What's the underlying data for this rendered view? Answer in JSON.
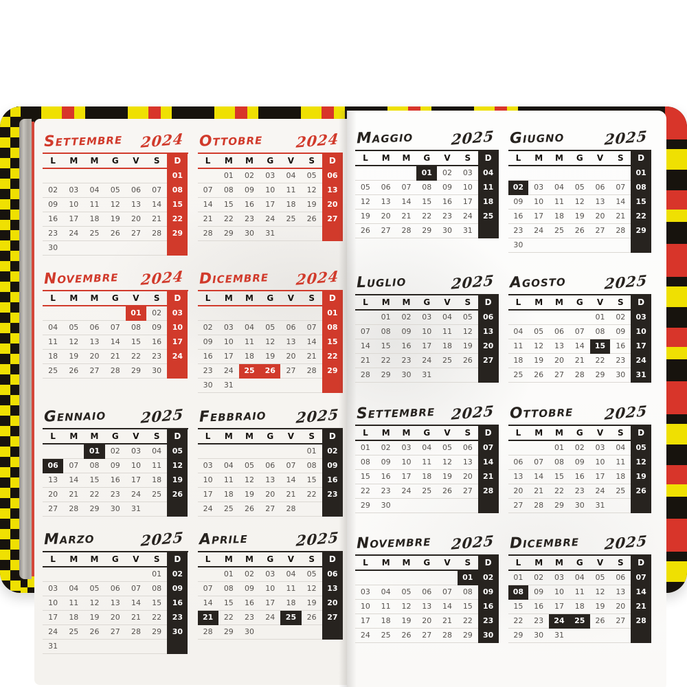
{
  "scene": {
    "description": "Open yearly-overview pages of a printed agenda planner (Italian), September 2024 - December 2025",
    "cover_colors": {
      "yellow": "#efe002",
      "black": "#17130d",
      "red": "#d8352a"
    }
  },
  "accents": {
    "red": "#d13a2b",
    "black": "#27231f"
  },
  "weekday_headers": [
    "L",
    "M",
    "M",
    "G",
    "V",
    "S",
    "D"
  ],
  "pages": [
    {
      "side": "left",
      "months": [
        {
          "name": "Settembre",
          "year": "2024",
          "accent": "red",
          "holidays": [],
          "weeks": [
            [
              "",
              "",
              "",
              "",
              "",
              "",
              "01"
            ],
            [
              "02",
              "03",
              "04",
              "05",
              "06",
              "07",
              "08"
            ],
            [
              "09",
              "10",
              "11",
              "12",
              "13",
              "14",
              "15"
            ],
            [
              "16",
              "17",
              "18",
              "19",
              "20",
              "21",
              "22"
            ],
            [
              "23",
              "24",
              "25",
              "26",
              "27",
              "28",
              "29"
            ],
            [
              "30",
              "",
              "",
              "",
              "",
              "",
              ""
            ]
          ]
        },
        {
          "name": "Ottobre",
          "year": "2024",
          "accent": "red",
          "holidays": [],
          "weeks": [
            [
              "",
              "01",
              "02",
              "03",
              "04",
              "05",
              "06"
            ],
            [
              "07",
              "08",
              "09",
              "10",
              "11",
              "12",
              "13"
            ],
            [
              "14",
              "15",
              "16",
              "17",
              "18",
              "19",
              "20"
            ],
            [
              "21",
              "22",
              "23",
              "24",
              "25",
              "26",
              "27"
            ],
            [
              "28",
              "29",
              "30",
              "31",
              "",
              "",
              ""
            ]
          ]
        },
        {
          "name": "Novembre",
          "year": "2024",
          "accent": "red",
          "holidays": [
            "01"
          ],
          "weeks": [
            [
              "",
              "",
              "",
              "",
              "01",
              "02",
              "03"
            ],
            [
              "04",
              "05",
              "06",
              "07",
              "08",
              "09",
              "10"
            ],
            [
              "11",
              "12",
              "13",
              "14",
              "15",
              "16",
              "17"
            ],
            [
              "18",
              "19",
              "20",
              "21",
              "22",
              "23",
              "24"
            ],
            [
              "25",
              "26",
              "27",
              "28",
              "29",
              "30",
              ""
            ]
          ]
        },
        {
          "name": "Dicembre",
          "year": "2024",
          "accent": "red",
          "holidays": [
            "25",
            "26"
          ],
          "weeks": [
            [
              "",
              "",
              "",
              "",
              "",
              "",
              "01"
            ],
            [
              "02",
              "03",
              "04",
              "05",
              "06",
              "07",
              "08"
            ],
            [
              "09",
              "10",
              "11",
              "12",
              "13",
              "14",
              "15"
            ],
            [
              "16",
              "17",
              "18",
              "19",
              "20",
              "21",
              "22"
            ],
            [
              "23",
              "24",
              "25",
              "26",
              "27",
              "28",
              "29"
            ],
            [
              "30",
              "31",
              "",
              "",
              "",
              "",
              ""
            ]
          ]
        },
        {
          "name": "Gennaio",
          "year": "2025",
          "accent": "black",
          "holidays": [
            "01",
            "06"
          ],
          "weeks": [
            [
              "",
              "",
              "01",
              "02",
              "03",
              "04",
              "05"
            ],
            [
              "06",
              "07",
              "08",
              "09",
              "10",
              "11",
              "12"
            ],
            [
              "13",
              "14",
              "15",
              "16",
              "17",
              "18",
              "19"
            ],
            [
              "20",
              "21",
              "22",
              "23",
              "24",
              "25",
              "26"
            ],
            [
              "27",
              "28",
              "29",
              "30",
              "31",
              "",
              ""
            ]
          ]
        },
        {
          "name": "Febbraio",
          "year": "2025",
          "accent": "black",
          "holidays": [],
          "weeks": [
            [
              "",
              "",
              "",
              "",
              "",
              "01",
              "02"
            ],
            [
              "03",
              "04",
              "05",
              "06",
              "07",
              "08",
              "09"
            ],
            [
              "10",
              "11",
              "12",
              "13",
              "14",
              "15",
              "16"
            ],
            [
              "17",
              "18",
              "19",
              "20",
              "21",
              "22",
              "23"
            ],
            [
              "24",
              "25",
              "26",
              "27",
              "28",
              "",
              ""
            ]
          ]
        },
        {
          "name": "Marzo",
          "year": "2025",
          "accent": "black",
          "holidays": [],
          "weeks": [
            [
              "",
              "",
              "",
              "",
              "",
              "01",
              "02"
            ],
            [
              "03",
              "04",
              "05",
              "06",
              "07",
              "08",
              "09"
            ],
            [
              "10",
              "11",
              "12",
              "13",
              "14",
              "15",
              "16"
            ],
            [
              "17",
              "18",
              "19",
              "20",
              "21",
              "22",
              "23"
            ],
            [
              "24",
              "25",
              "26",
              "27",
              "28",
              "29",
              "30"
            ],
            [
              "31",
              "",
              "",
              "",
              "",
              "",
              ""
            ]
          ]
        },
        {
          "name": "Aprile",
          "year": "2025",
          "accent": "black",
          "holidays": [
            "21",
            "25"
          ],
          "weeks": [
            [
              "",
              "01",
              "02",
              "03",
              "04",
              "05",
              "06"
            ],
            [
              "07",
              "08",
              "09",
              "10",
              "11",
              "12",
              "13"
            ],
            [
              "14",
              "15",
              "16",
              "17",
              "18",
              "19",
              "20"
            ],
            [
              "21",
              "22",
              "23",
              "24",
              "25",
              "26",
              "27"
            ],
            [
              "28",
              "29",
              "30",
              "",
              "",
              "",
              ""
            ]
          ]
        }
      ]
    },
    {
      "side": "right",
      "months": [
        {
          "name": "Maggio",
          "year": "2025",
          "accent": "black",
          "holidays": [
            "01"
          ],
          "weeks": [
            [
              "",
              "",
              "",
              "01",
              "02",
              "03",
              "04"
            ],
            [
              "05",
              "06",
              "07",
              "08",
              "09",
              "10",
              "11"
            ],
            [
              "12",
              "13",
              "14",
              "15",
              "16",
              "17",
              "18"
            ],
            [
              "19",
              "20",
              "21",
              "22",
              "23",
              "24",
              "25"
            ],
            [
              "26",
              "27",
              "28",
              "29",
              "30",
              "31",
              ""
            ]
          ]
        },
        {
          "name": "Giugno",
          "year": "2025",
          "accent": "black",
          "holidays": [
            "02"
          ],
          "weeks": [
            [
              "",
              "",
              "",
              "",
              "",
              "",
              "01"
            ],
            [
              "02",
              "03",
              "04",
              "05",
              "06",
              "07",
              "08"
            ],
            [
              "09",
              "10",
              "11",
              "12",
              "13",
              "14",
              "15"
            ],
            [
              "16",
              "17",
              "18",
              "19",
              "20",
              "21",
              "22"
            ],
            [
              "23",
              "24",
              "25",
              "26",
              "27",
              "28",
              "29"
            ],
            [
              "30",
              "",
              "",
              "",
              "",
              "",
              ""
            ]
          ]
        },
        {
          "name": "Luglio",
          "year": "2025",
          "accent": "black",
          "holidays": [],
          "weeks": [
            [
              "",
              "01",
              "02",
              "03",
              "04",
              "05",
              "06"
            ],
            [
              "07",
              "08",
              "09",
              "10",
              "11",
              "12",
              "13"
            ],
            [
              "14",
              "15",
              "16",
              "17",
              "18",
              "19",
              "20"
            ],
            [
              "21",
              "22",
              "23",
              "24",
              "25",
              "26",
              "27"
            ],
            [
              "28",
              "29",
              "30",
              "31",
              "",
              "",
              ""
            ]
          ]
        },
        {
          "name": "Agosto",
          "year": "2025",
          "accent": "black",
          "holidays": [
            "15"
          ],
          "weeks": [
            [
              "",
              "",
              "",
              "",
              "01",
              "02",
              "03"
            ],
            [
              "04",
              "05",
              "06",
              "07",
              "08",
              "09",
              "10"
            ],
            [
              "11",
              "12",
              "13",
              "14",
              "15",
              "16",
              "17"
            ],
            [
              "18",
              "19",
              "20",
              "21",
              "22",
              "23",
              "24"
            ],
            [
              "25",
              "26",
              "27",
              "28",
              "29",
              "30",
              "31"
            ]
          ]
        },
        {
          "name": "Settembre",
          "year": "2025",
          "accent": "black",
          "holidays": [],
          "weeks": [
            [
              "01",
              "02",
              "03",
              "04",
              "05",
              "06",
              "07"
            ],
            [
              "08",
              "09",
              "10",
              "11",
              "12",
              "13",
              "14"
            ],
            [
              "15",
              "16",
              "17",
              "18",
              "19",
              "20",
              "21"
            ],
            [
              "22",
              "23",
              "24",
              "25",
              "26",
              "27",
              "28"
            ],
            [
              "29",
              "30",
              "",
              "",
              "",
              "",
              ""
            ]
          ]
        },
        {
          "name": "Ottobre",
          "year": "2025",
          "accent": "black",
          "holidays": [],
          "weeks": [
            [
              "",
              "",
              "01",
              "02",
              "03",
              "04",
              "05"
            ],
            [
              "06",
              "07",
              "08",
              "09",
              "10",
              "11",
              "12"
            ],
            [
              "13",
              "14",
              "15",
              "16",
              "17",
              "18",
              "19"
            ],
            [
              "20",
              "21",
              "22",
              "23",
              "24",
              "25",
              "26"
            ],
            [
              "27",
              "28",
              "29",
              "30",
              "31",
              "",
              ""
            ]
          ]
        },
        {
          "name": "Novembre",
          "year": "2025",
          "accent": "black",
          "holidays": [
            "01"
          ],
          "weeks": [
            [
              "",
              "",
              "",
              "",
              "",
              "01",
              "02"
            ],
            [
              "03",
              "04",
              "05",
              "06",
              "07",
              "08",
              "09"
            ],
            [
              "10",
              "11",
              "12",
              "13",
              "14",
              "15",
              "16"
            ],
            [
              "17",
              "18",
              "19",
              "20",
              "21",
              "22",
              "23"
            ],
            [
              "24",
              "25",
              "26",
              "27",
              "28",
              "29",
              "30"
            ]
          ]
        },
        {
          "name": "Dicembre",
          "year": "2025",
          "accent": "black",
          "holidays": [
            "08",
            "24",
            "25"
          ],
          "weeks": [
            [
              "01",
              "02",
              "03",
              "04",
              "05",
              "06",
              "07"
            ],
            [
              "08",
              "09",
              "10",
              "11",
              "12",
              "13",
              "14"
            ],
            [
              "15",
              "16",
              "17",
              "18",
              "19",
              "20",
              "21"
            ],
            [
              "22",
              "23",
              "24",
              "25",
              "26",
              "27",
              "28"
            ],
            [
              "29",
              "30",
              "31",
              "",
              "",
              "",
              ""
            ]
          ]
        }
      ]
    }
  ]
}
